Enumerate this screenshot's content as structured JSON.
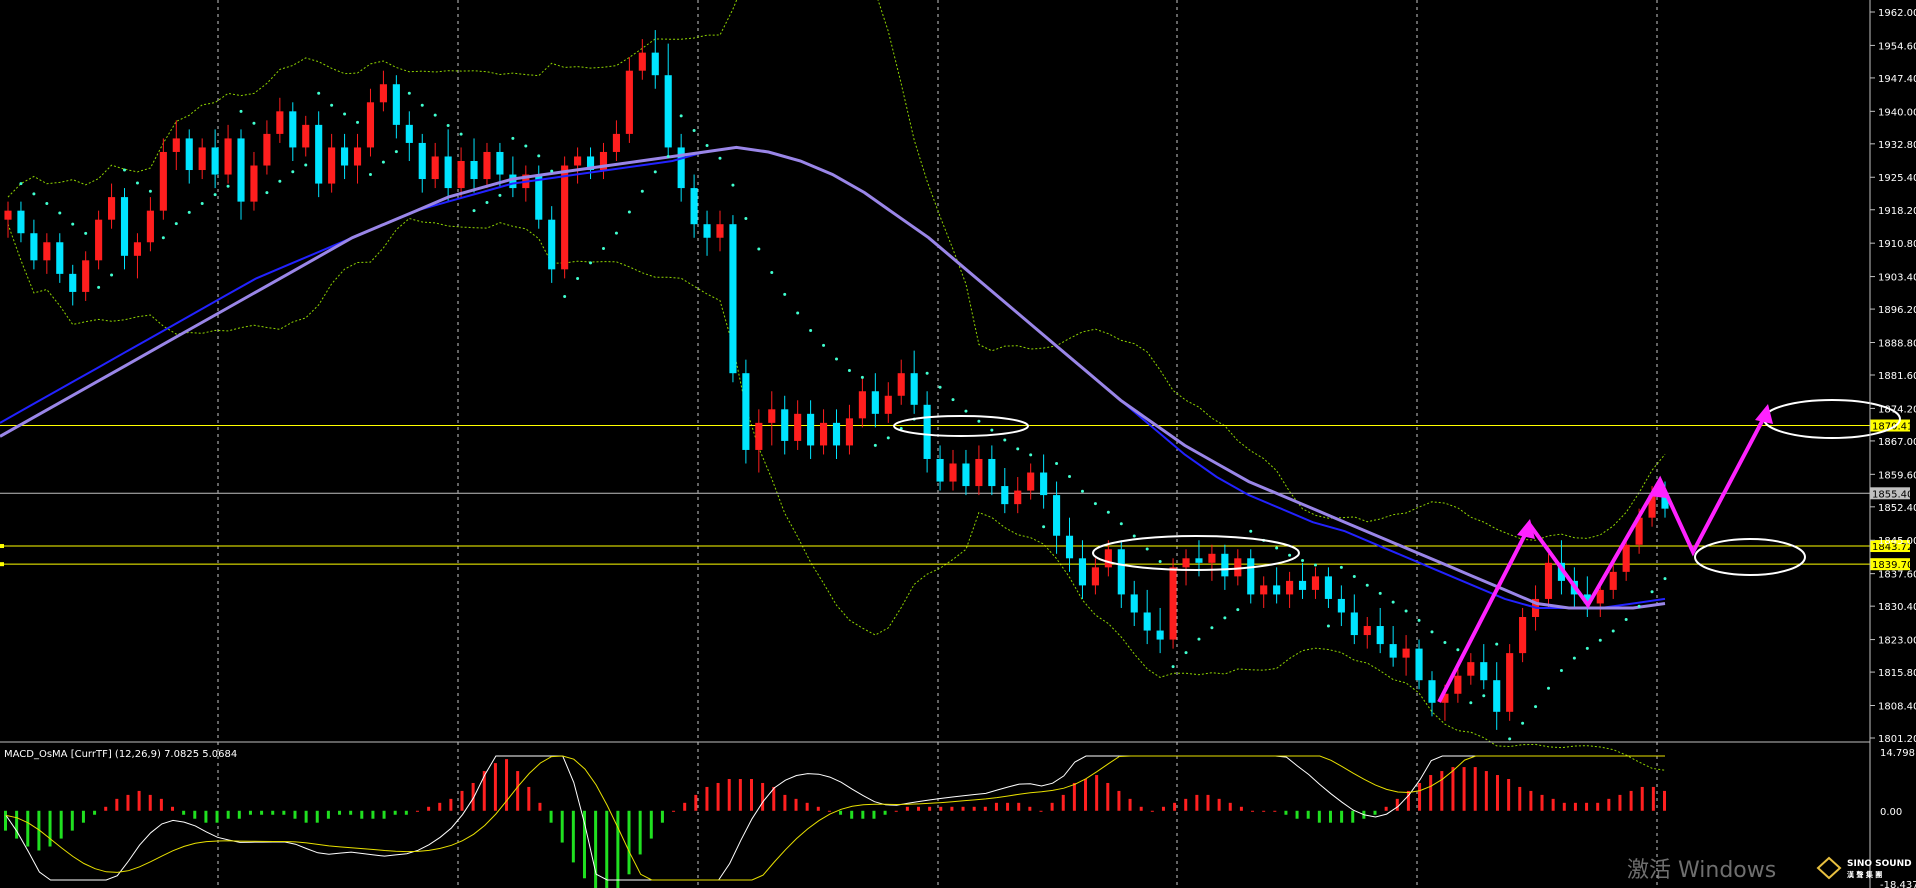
{
  "chart_data": {
    "type": "candlestick",
    "price_axis": {
      "ylim": [
        1801.2,
        1962.0
      ],
      "tick_labels": [
        "1962.00",
        "1954.60",
        "1947.40",
        "1940.00",
        "1932.80",
        "1925.40",
        "1918.20",
        "1910.80",
        "1903.40",
        "1896.20",
        "1888.80",
        "1881.60",
        "1874.20",
        "1867.00",
        "1859.60",
        "1852.40",
        "1845.00",
        "1837.60",
        "1830.40",
        "1823.00",
        "1815.80",
        "1808.40",
        "1801.20"
      ]
    },
    "horizontal_lines": [
      {
        "price": 1870.41,
        "color": "#ffff00",
        "tag": "1870.41"
      },
      {
        "price": 1843.72,
        "color": "#ffff00",
        "tag": "1843.72"
      },
      {
        "price": 1839.7,
        "color": "#ffff00",
        "tag": "1839.70"
      },
      {
        "price": 1855.4,
        "color": "#c0c0c0",
        "tag": "1855.40"
      }
    ],
    "candles": [
      [
        1916,
        1920,
        1912,
        1918
      ],
      [
        1918,
        1920,
        1911,
        1913
      ],
      [
        1913,
        1916,
        1905,
        1907
      ],
      [
        1907,
        1913,
        1904,
        1911
      ],
      [
        1911,
        1913,
        1902,
        1904
      ],
      [
        1904,
        1906,
        1897,
        1900
      ],
      [
        1900,
        1909,
        1898,
        1907
      ],
      [
        1907,
        1918,
        1905,
        1916
      ],
      [
        1916,
        1924,
        1914,
        1921
      ],
      [
        1921,
        1923,
        1905,
        1908
      ],
      [
        1908,
        1913,
        1903,
        1911
      ],
      [
        1911,
        1921,
        1909,
        1918
      ],
      [
        1918,
        1934,
        1916,
        1931
      ],
      [
        1931,
        1938,
        1927,
        1934
      ],
      [
        1934,
        1936,
        1924,
        1927
      ],
      [
        1927,
        1934,
        1925,
        1932
      ],
      [
        1932,
        1936,
        1923,
        1926
      ],
      [
        1926,
        1937,
        1924,
        1934
      ],
      [
        1934,
        1936,
        1916,
        1920
      ],
      [
        1920,
        1931,
        1918,
        1928
      ],
      [
        1928,
        1938,
        1926,
        1935
      ],
      [
        1935,
        1943,
        1933,
        1940
      ],
      [
        1940,
        1942,
        1929,
        1932
      ],
      [
        1932,
        1939,
        1930,
        1937
      ],
      [
        1937,
        1940,
        1921,
        1924
      ],
      [
        1924,
        1935,
        1922,
        1932
      ],
      [
        1932,
        1935,
        1925,
        1928
      ],
      [
        1928,
        1935,
        1924,
        1932
      ],
      [
        1932,
        1945,
        1930,
        1942
      ],
      [
        1942,
        1949,
        1940,
        1946
      ],
      [
        1946,
        1948,
        1934,
        1937
      ],
      [
        1937,
        1940,
        1929,
        1933
      ],
      [
        1933,
        1935,
        1922,
        1925
      ],
      [
        1925,
        1933,
        1923,
        1930
      ],
      [
        1930,
        1936,
        1920,
        1923
      ],
      [
        1923,
        1932,
        1921,
        1929
      ],
      [
        1929,
        1934,
        1922,
        1925
      ],
      [
        1925,
        1933,
        1923,
        1931
      ],
      [
        1931,
        1933,
        1923,
        1926
      ],
      [
        1926,
        1930,
        1921,
        1923
      ],
      [
        1923,
        1928,
        1920,
        1926
      ],
      [
        1926,
        1928,
        1914,
        1916
      ],
      [
        1916,
        1919,
        1902,
        1905
      ],
      [
        1905,
        1930,
        1903,
        1928
      ],
      [
        1928,
        1932,
        1924,
        1930
      ],
      [
        1930,
        1932,
        1925,
        1927
      ],
      [
        1927,
        1933,
        1925,
        1931
      ],
      [
        1931,
        1938,
        1929,
        1935
      ],
      [
        1935,
        1952,
        1933,
        1949
      ],
      [
        1949,
        1956,
        1947,
        1953
      ],
      [
        1953,
        1958,
        1945,
        1948
      ],
      [
        1948,
        1955,
        1930,
        1932
      ],
      [
        1932,
        1935,
        1920,
        1923
      ],
      [
        1923,
        1926,
        1912,
        1915
      ],
      [
        1915,
        1918,
        1908,
        1912
      ],
      [
        1912,
        1918,
        1909,
        1915
      ],
      [
        1915,
        1917,
        1880,
        1882
      ],
      [
        1882,
        1885,
        1862,
        1865
      ],
      [
        1865,
        1874,
        1860,
        1871
      ],
      [
        1871,
        1878,
        1866,
        1874
      ],
      [
        1874,
        1877,
        1864,
        1867
      ],
      [
        1867,
        1876,
        1865,
        1873
      ],
      [
        1873,
        1876,
        1863,
        1866
      ],
      [
        1866,
        1874,
        1864,
        1871
      ],
      [
        1871,
        1874,
        1863,
        1866
      ],
      [
        1866,
        1875,
        1864,
        1872
      ],
      [
        1872,
        1881,
        1870,
        1878
      ],
      [
        1878,
        1882,
        1870,
        1873
      ],
      [
        1873,
        1880,
        1871,
        1877
      ],
      [
        1877,
        1885,
        1875,
        1882
      ],
      [
        1882,
        1887,
        1873,
        1875
      ],
      [
        1875,
        1878,
        1860,
        1863
      ],
      [
        1863,
        1866,
        1856,
        1858
      ],
      [
        1858,
        1865,
        1856,
        1862
      ],
      [
        1862,
        1865,
        1855,
        1857
      ],
      [
        1857,
        1866,
        1855,
        1863
      ],
      [
        1863,
        1866,
        1855,
        1857
      ],
      [
        1857,
        1861,
        1851,
        1853
      ],
      [
        1853,
        1859,
        1851,
        1856
      ],
      [
        1856,
        1862,
        1854,
        1860
      ],
      [
        1860,
        1864,
        1852,
        1855
      ],
      [
        1855,
        1858,
        1842,
        1846
      ],
      [
        1846,
        1850,
        1838,
        1841
      ],
      [
        1841,
        1845,
        1832,
        1835
      ],
      [
        1835,
        1841,
        1833,
        1839
      ],
      [
        1839,
        1845,
        1837,
        1843
      ],
      [
        1843,
        1845,
        1830,
        1833
      ],
      [
        1833,
        1836,
        1826,
        1829
      ],
      [
        1829,
        1834,
        1822,
        1825
      ],
      [
        1825,
        1830,
        1820,
        1823
      ],
      [
        1823,
        1841,
        1821,
        1839
      ],
      [
        1839,
        1843,
        1835,
        1841
      ],
      [
        1841,
        1845,
        1837,
        1840
      ],
      [
        1840,
        1844,
        1836,
        1842
      ],
      [
        1842,
        1844,
        1834,
        1837
      ],
      [
        1837,
        1843,
        1835,
        1841
      ],
      [
        1841,
        1843,
        1831,
        1833
      ],
      [
        1833,
        1837,
        1830,
        1835
      ],
      [
        1835,
        1839,
        1831,
        1833
      ],
      [
        1833,
        1838,
        1830,
        1836
      ],
      [
        1836,
        1840,
        1832,
        1834
      ],
      [
        1834,
        1839,
        1832,
        1837
      ],
      [
        1837,
        1839,
        1830,
        1832
      ],
      [
        1832,
        1835,
        1826,
        1829
      ],
      [
        1829,
        1833,
        1822,
        1824
      ],
      [
        1824,
        1828,
        1821,
        1826
      ],
      [
        1826,
        1830,
        1820,
        1822
      ],
      [
        1822,
        1826,
        1817,
        1819
      ],
      [
        1819,
        1824,
        1815,
        1821
      ],
      [
        1821,
        1823,
        1812,
        1814
      ],
      [
        1814,
        1816,
        1806,
        1809
      ],
      [
        1809,
        1813,
        1805,
        1811
      ],
      [
        1811,
        1817,
        1809,
        1815
      ],
      [
        1815,
        1820,
        1813,
        1818
      ],
      [
        1818,
        1822,
        1812,
        1814
      ],
      [
        1814,
        1818,
        1803,
        1807
      ],
      [
        1807,
        1822,
        1805,
        1820
      ],
      [
        1820,
        1830,
        1818,
        1828
      ],
      [
        1828,
        1835,
        1825,
        1832
      ],
      [
        1832,
        1842,
        1830,
        1840
      ],
      [
        1840,
        1845,
        1833,
        1836
      ],
      [
        1836,
        1839,
        1830,
        1833
      ],
      [
        1833,
        1837,
        1828,
        1831
      ],
      [
        1831,
        1836,
        1828,
        1834
      ],
      [
        1834,
        1840,
        1832,
        1838
      ],
      [
        1838,
        1846,
        1836,
        1844
      ],
      [
        1844,
        1852,
        1842,
        1850
      ],
      [
        1850,
        1857,
        1848,
        1855
      ],
      [
        1855,
        1858,
        1850,
        1852
      ]
    ],
    "moving_averages": [
      {
        "name": "ma_blue",
        "color": "#2222ff",
        "values": [
          1871,
          1875,
          1879,
          1883,
          1887,
          1891,
          1895,
          1899,
          1903,
          1906,
          1909,
          1912,
          1915,
          1918,
          1920,
          1922,
          1924,
          1925,
          1926,
          1927,
          1928,
          1929,
          1931,
          1932,
          1931,
          1929,
          1926,
          1922,
          1917,
          1912,
          1906,
          1900,
          1894,
          1888,
          1882,
          1876,
          1870,
          1864,
          1859,
          1855,
          1852,
          1849,
          1847,
          1844,
          1841,
          1838,
          1835,
          1832,
          1830,
          1830,
          1830,
          1831,
          1832
        ]
      },
      {
        "name": "ma_lilac",
        "color": "#9a86e8",
        "values": [
          1868,
          1872,
          1876,
          1880,
          1884,
          1888,
          1892,
          1896,
          1900,
          1904,
          1908,
          1912,
          1915,
          1918,
          1921,
          1923,
          1925,
          1926,
          1927,
          1928,
          1929,
          1930,
          1931,
          1932,
          1931,
          1929,
          1926,
          1922,
          1917,
          1912,
          1906,
          1900,
          1894,
          1888,
          1882,
          1876,
          1871,
          1866,
          1862,
          1858,
          1855,
          1852,
          1849,
          1846,
          1843,
          1840,
          1837,
          1834,
          1831,
          1830,
          1830,
          1830,
          1831
        ]
      }
    ],
    "macd_panel": {
      "title": "MACD_OsMA [CurrTF] (12,26,9) 7.0825 5.0684",
      "ylim": [
        -18.4375,
        14.7981
      ],
      "tick_labels": [
        "14.7981",
        "0.00",
        "-18.4375"
      ],
      "histogram": [
        -5,
        -7,
        -9,
        -10,
        -9,
        -7,
        -5,
        -3,
        -1,
        1,
        3,
        4,
        5,
        4,
        3,
        1,
        -1,
        -2,
        -3,
        -3,
        -2,
        -2,
        -1,
        -1,
        -1,
        -1,
        -2,
        -3,
        -3,
        -2,
        -1,
        -1,
        -2,
        -2,
        -2,
        -1,
        -1,
        0,
        1,
        2,
        3,
        5,
        7,
        10,
        12,
        13,
        10,
        6,
        2,
        -3,
        -8,
        -13,
        -17,
        -21,
        -22,
        -20,
        -16,
        -11,
        -7,
        -3,
        0,
        2,
        4,
        6,
        7,
        8,
        8,
        8,
        7,
        6,
        4,
        3,
        2,
        1,
        0,
        -1,
        -2,
        -2,
        -2,
        -1,
        0,
        1,
        1,
        1,
        1,
        1,
        1,
        1,
        1,
        2,
        2,
        2,
        1,
        0,
        2,
        4,
        7,
        8,
        9,
        7,
        5,
        3,
        1,
        0,
        1,
        2,
        3,
        4,
        4,
        3,
        2,
        1,
        0,
        0,
        0,
        -1,
        -2,
        -2,
        -3,
        -3,
        -3,
        -3,
        -2,
        -1,
        1,
        3,
        5,
        7,
        9,
        10,
        11,
        11,
        11,
        10,
        9,
        8,
        6,
        5,
        4,
        3,
        2,
        2,
        2,
        2,
        3,
        4,
        5,
        6,
        6,
        5
      ]
    }
  },
  "watermark": "激活 Windows",
  "logo": {
    "name": "SINO SOUND",
    "sub": "漢 聲 集 團"
  }
}
